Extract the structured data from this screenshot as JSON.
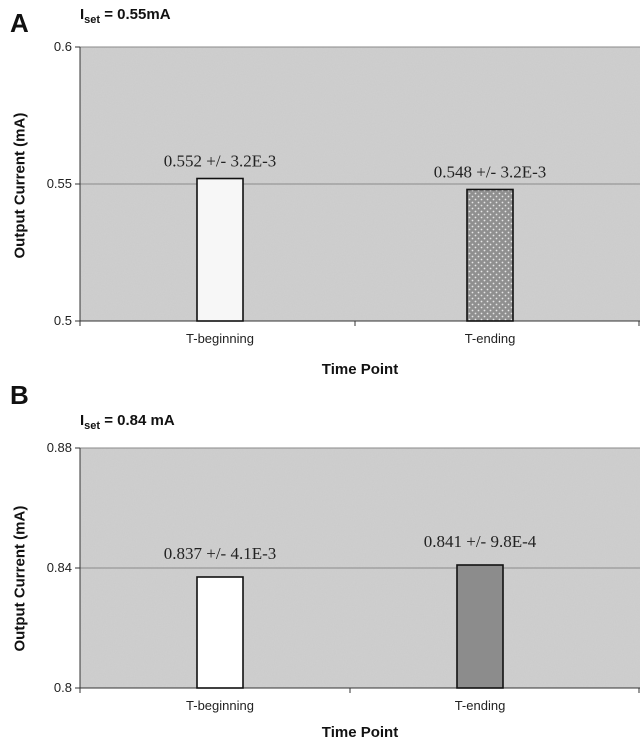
{
  "chart_data": [
    {
      "type": "bar",
      "panel_label": "A",
      "iset_prefix": "I",
      "iset_sub": "set",
      "iset_value": " = 0.55mA",
      "categories": [
        "T-beginning",
        "T-ending"
      ],
      "values": [
        0.552,
        0.548
      ],
      "data_labels": [
        "0.552 +/- 3.2E-3",
        "0.548 +/- 3.2E-3"
      ],
      "ylim": [
        0.5,
        0.6
      ],
      "yticks": [
        0.5,
        0.55,
        0.6
      ],
      "ytick_labels": [
        "0.5",
        "0.55",
        "0.6"
      ],
      "xlabel": "Time Point",
      "ylabel": "Output Current (mA)",
      "grid": true,
      "bar_colors": [
        "#f7f7f7",
        "#8f8f8f"
      ],
      "plot_bg": "#cfcfcf"
    },
    {
      "type": "bar",
      "panel_label": "B",
      "iset_prefix": "I",
      "iset_sub": "set",
      "iset_value": " = 0.84 mA",
      "categories": [
        "T-beginning",
        "T-ending"
      ],
      "values": [
        0.837,
        0.841
      ],
      "data_labels": [
        "0.837 +/- 4.1E-3",
        "0.841 +/- 9.8E-4"
      ],
      "ylim": [
        0.8,
        0.88
      ],
      "yticks": [
        0.8,
        0.84,
        0.88
      ],
      "ytick_labels": [
        "0.8",
        "0.84",
        "0.88"
      ],
      "xlabel": "Time Point",
      "ylabel": "Output Current (mA)",
      "grid": true,
      "bar_colors": [
        "#ffffff",
        "#8c8c8c"
      ],
      "plot_bg": "#cfcfcf"
    }
  ]
}
